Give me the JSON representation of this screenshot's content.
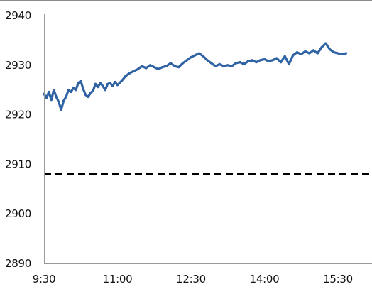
{
  "chart_data": {
    "type": "line",
    "title": "",
    "xlabel": "",
    "ylabel": "",
    "ylim": [
      2890,
      2940
    ],
    "xlim": [
      "9:30",
      "15:50"
    ],
    "x_ticks": [
      "9:30",
      "11:00",
      "12:30",
      "14:00",
      "15:30"
    ],
    "y_ticks": [
      2890,
      2900,
      2910,
      2920,
      2930,
      2940
    ],
    "grid": false,
    "legend": "none",
    "reference_line": {
      "value": 2908,
      "style": "dashed",
      "color": "#000000"
    },
    "series": [
      {
        "color": "#2f63a3",
        "x": [
          "9:30",
          "9:33",
          "9:36",
          "9:39",
          "9:42",
          "9:45",
          "9:48",
          "9:51",
          "9:54",
          "9:57",
          "10:00",
          "10:03",
          "10:06",
          "10:09",
          "10:12",
          "10:15",
          "10:18",
          "10:21",
          "10:24",
          "10:27",
          "10:30",
          "10:33",
          "10:36",
          "10:39",
          "10:42",
          "10:45",
          "10:48",
          "10:51",
          "10:54",
          "10:57",
          "11:00",
          "11:05",
          "11:10",
          "11:15",
          "11:20",
          "11:25",
          "11:30",
          "11:35",
          "11:40",
          "11:45",
          "11:50",
          "11:55",
          "12:00",
          "12:05",
          "12:10",
          "12:15",
          "12:20",
          "12:25",
          "12:30",
          "12:35",
          "12:40",
          "12:45",
          "12:50",
          "12:55",
          "13:00",
          "13:05",
          "13:10",
          "13:15",
          "13:20",
          "13:25",
          "13:30",
          "13:35",
          "13:40",
          "13:45",
          "13:50",
          "13:55",
          "14:00",
          "14:05",
          "14:10",
          "14:15",
          "14:20",
          "14:25",
          "14:30",
          "14:35",
          "14:40",
          "14:45",
          "14:50",
          "14:55",
          "15:00",
          "15:05",
          "15:10",
          "15:15",
          "15:20",
          "15:25",
          "15:30",
          "15:35",
          "15:40"
        ],
        "values": [
          2924.2,
          2923.4,
          2924.6,
          2923.0,
          2925.0,
          2923.6,
          2922.6,
          2921.0,
          2922.8,
          2923.6,
          2925.0,
          2924.6,
          2925.4,
          2925.0,
          2926.4,
          2926.8,
          2925.2,
          2924.0,
          2923.6,
          2924.4,
          2924.8,
          2926.2,
          2925.6,
          2926.4,
          2925.8,
          2925.0,
          2926.2,
          2926.4,
          2925.8,
          2926.6,
          2926.0,
          2926.8,
          2927.8,
          2928.4,
          2928.8,
          2929.2,
          2929.8,
          2929.4,
          2930.0,
          2929.6,
          2929.2,
          2929.6,
          2929.8,
          2930.4,
          2929.8,
          2929.6,
          2930.4,
          2931.0,
          2931.6,
          2932.0,
          2932.4,
          2931.8,
          2931.0,
          2930.4,
          2929.8,
          2930.2,
          2929.8,
          2930.0,
          2929.8,
          2930.4,
          2930.6,
          2930.2,
          2930.8,
          2931.0,
          2930.6,
          2931.0,
          2931.2,
          2930.8,
          2931.0,
          2931.4,
          2930.6,
          2931.8,
          2930.2,
          2932.0,
          2932.6,
          2932.2,
          2932.8,
          2932.4,
          2933.0,
          2932.4,
          2933.6,
          2934.4,
          2933.2,
          2932.6,
          2932.4,
          2932.2,
          2932.4
        ]
      }
    ]
  }
}
